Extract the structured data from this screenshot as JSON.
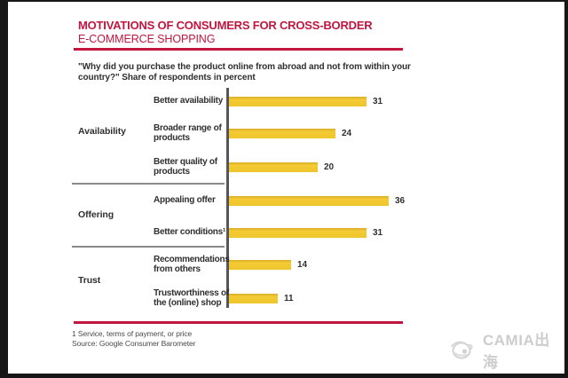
{
  "header": {
    "title_line1": "MOTIVATIONS OF CONSUMERS FOR CROSS-BORDER",
    "title_line2": "E-COMMERCE SHOPPING",
    "subtitle": "\"Why did you purchase the product online from abroad and not from within your\ncountry?\" Share of respondents in percent"
  },
  "chart_data": {
    "type": "bar",
    "orientation": "horizontal",
    "title": "Motivations of consumers for cross-border e-commerce shopping",
    "xlabel": "Share of respondents in percent",
    "xlim": [
      0,
      40
    ],
    "bar_color": "#EFC52C",
    "grid": false,
    "legend": false,
    "groups": [
      {
        "name": "Availability",
        "items": [
          {
            "label": "Better availability",
            "value": 31
          },
          {
            "label": "Broader range of\nproducts",
            "value": 24
          },
          {
            "label": "Better quality of\nproducts",
            "value": 20
          }
        ]
      },
      {
        "name": "Offering",
        "items": [
          {
            "label": "Appealing offer",
            "value": 36
          },
          {
            "label": "Better conditions¹",
            "value": 31
          }
        ]
      },
      {
        "name": "Trust",
        "items": [
          {
            "label": "Recommendations\nfrom others",
            "value": 14
          },
          {
            "label": "Trustworthiness of\nthe (online) shop",
            "value": 11
          }
        ]
      }
    ]
  },
  "footer": {
    "footnote": "1 Service, terms of payment, or price",
    "source": "Source: Google Consumer Barometer"
  },
  "watermark": {
    "text": "CAMIA出海",
    "logo": "camia-globe-logo-icon"
  },
  "colors": {
    "accent_red": "#C2163F",
    "bar_yellow": "#EFC52C",
    "axis_gray": "#55565A",
    "divider_gray": "#8A8A8A",
    "text_dark": "#2F2F2F",
    "watermark_gray": "#CDCDCD",
    "frame_black": "#161616"
  }
}
